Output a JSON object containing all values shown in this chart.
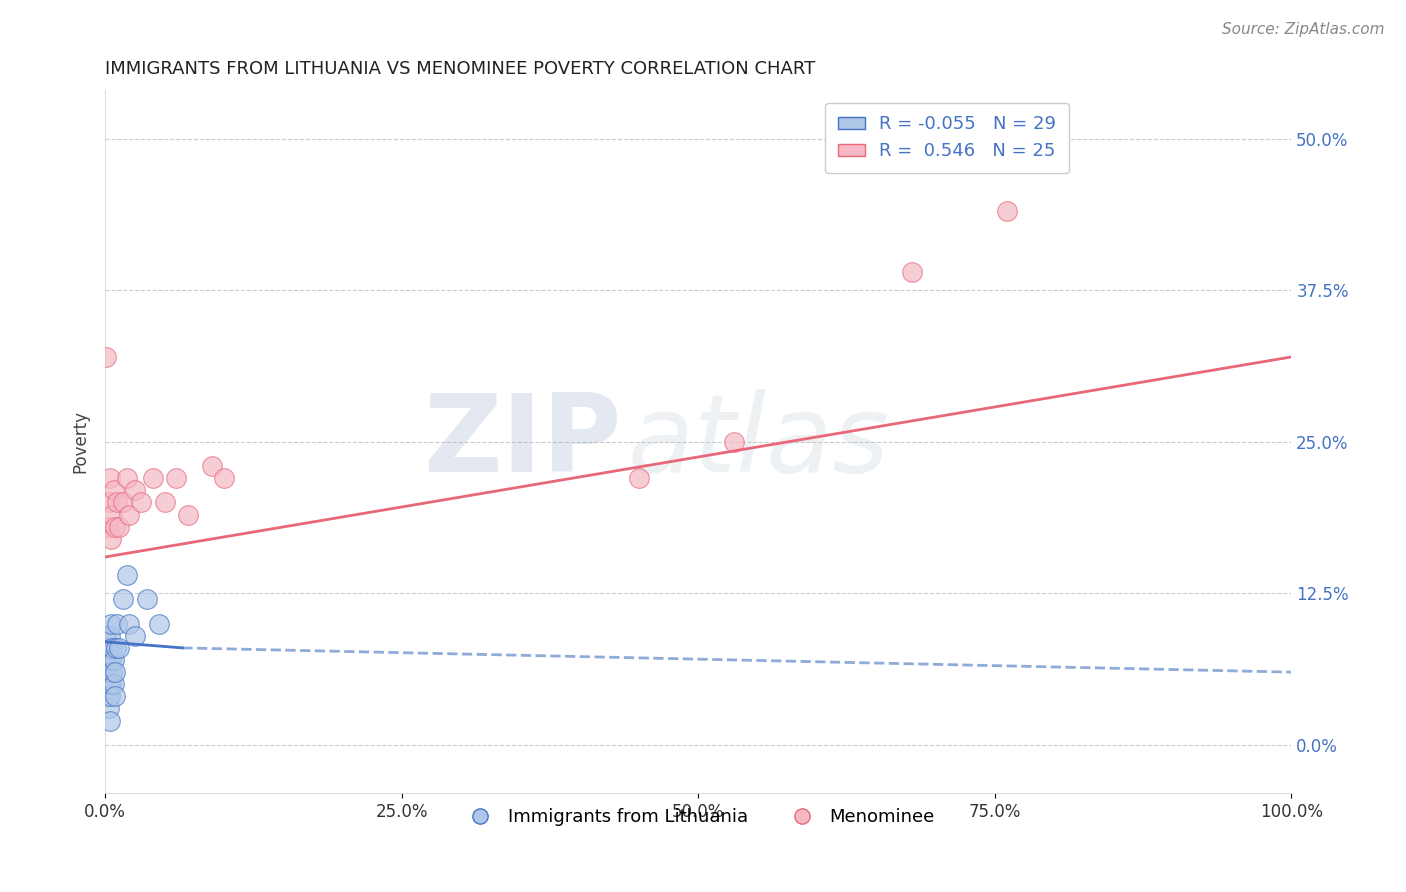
{
  "title": "IMMIGRANTS FROM LITHUANIA VS MENOMINEE POVERTY CORRELATION CHART",
  "source_text": "Source: ZipAtlas.com",
  "ylabel": "Poverty",
  "xlabel": "",
  "watermark_zip": "ZIP",
  "watermark_atlas": "atlas",
  "xlim": [
    0.0,
    1.0
  ],
  "ylim": [
    -0.04,
    0.54
  ],
  "xtick_vals": [
    0.0,
    0.25,
    0.5,
    0.75,
    1.0
  ],
  "xtick_labels": [
    "0.0%",
    "25.0%",
    "50.0%",
    "75.0%",
    "100.0%"
  ],
  "ytick_vals": [
    0.0,
    0.125,
    0.25,
    0.375,
    0.5
  ],
  "ytick_labels": [
    "0.0%",
    "12.5%",
    "25.0%",
    "37.5%",
    "50.0%"
  ],
  "blue_R": -0.055,
  "blue_N": 29,
  "pink_R": 0.546,
  "pink_N": 25,
  "legend_label_blue": "Immigrants from Lithuania",
  "legend_label_pink": "Menominee",
  "blue_fill_color": "#aec6e8",
  "pink_fill_color": "#f5b8c4",
  "blue_edge_color": "#4472C4",
  "pink_edge_color": "#e8687a",
  "background_color": "#ffffff",
  "grid_color": "#cccccc",
  "blue_scatter_x": [
    0.001,
    0.001,
    0.002,
    0.002,
    0.002,
    0.003,
    0.003,
    0.003,
    0.004,
    0.004,
    0.004,
    0.005,
    0.005,
    0.005,
    0.006,
    0.006,
    0.007,
    0.007,
    0.008,
    0.008,
    0.009,
    0.01,
    0.012,
    0.015,
    0.018,
    0.02,
    0.025,
    0.035,
    0.045
  ],
  "blue_scatter_y": [
    0.07,
    0.09,
    0.04,
    0.06,
    0.08,
    0.03,
    0.05,
    0.07,
    0.02,
    0.04,
    0.09,
    0.05,
    0.07,
    0.1,
    0.06,
    0.08,
    0.05,
    0.07,
    0.04,
    0.06,
    0.08,
    0.1,
    0.08,
    0.12,
    0.14,
    0.1,
    0.09,
    0.12,
    0.1
  ],
  "pink_scatter_x": [
    0.001,
    0.002,
    0.003,
    0.004,
    0.005,
    0.006,
    0.007,
    0.008,
    0.01,
    0.012,
    0.015,
    0.018,
    0.02,
    0.025,
    0.03,
    0.04,
    0.05,
    0.06,
    0.07,
    0.09,
    0.1,
    0.45,
    0.53,
    0.68,
    0.76
  ],
  "pink_scatter_y": [
    0.32,
    0.18,
    0.2,
    0.22,
    0.17,
    0.19,
    0.21,
    0.18,
    0.2,
    0.18,
    0.2,
    0.22,
    0.19,
    0.21,
    0.2,
    0.22,
    0.2,
    0.22,
    0.19,
    0.23,
    0.22,
    0.22,
    0.25,
    0.39,
    0.44
  ],
  "blue_trend_x0": 0.0,
  "blue_trend_x1": 0.065,
  "blue_trend_x2": 1.0,
  "blue_trend_y0": 0.085,
  "blue_trend_y1": 0.08,
  "blue_trend_y2": 0.06,
  "pink_trend_x0": 0.0,
  "pink_trend_x1": 1.0,
  "pink_trend_y0": 0.155,
  "pink_trend_y1": 0.32
}
